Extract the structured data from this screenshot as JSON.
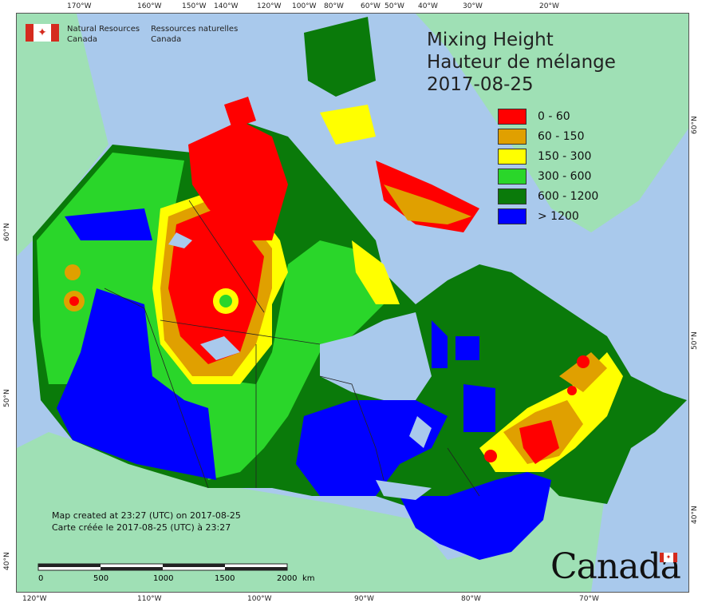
{
  "title": {
    "line1": "Mixing Height",
    "line2": "Hauteur de mélange",
    "date": "2017-08-25"
  },
  "agency": {
    "en_line1": "Natural Resources",
    "en_line2": "Canada",
    "fr_line1": "Ressources naturelles",
    "fr_line2": "Canada"
  },
  "legend": [
    {
      "label": "0 - 60",
      "color": "#ff0000"
    },
    {
      "label": "60 - 150",
      "color": "#e0a000"
    },
    {
      "label": "150 - 300",
      "color": "#ffff00"
    },
    {
      "label": "300 - 600",
      "color": "#2ad62a"
    },
    {
      "label": "600 - 1200",
      "color": "#0a7a0a"
    },
    {
      "label": "> 1200",
      "color": "#0000ff"
    }
  ],
  "footer": {
    "created_en": "Map created at 23:27 (UTC) on 2017-08-25",
    "created_fr": "Carte créée le 2017-08-25 (UTC) à 23:27"
  },
  "scale": {
    "ticks": [
      "0",
      "500",
      "1000",
      "1500",
      "2000"
    ],
    "unit": "km"
  },
  "wordmark": "Canada",
  "graticule": {
    "top": [
      "170°W",
      "160°W",
      "150°W",
      "140°W",
      "120°W",
      "100°W",
      "80°W",
      "60°W",
      "50°W",
      "40°W",
      "30°W",
      "20°W"
    ],
    "bottom": [
      "120°W",
      "110°W",
      "100°W",
      "90°W",
      "80°W",
      "70°W"
    ],
    "left": [
      "60°N",
      "50°N",
      "40°N"
    ],
    "right": [
      "60°N",
      "50°N",
      "40°N"
    ]
  },
  "colors": {
    "ocean": "#a9c9ec",
    "land_other": "#9fe0b5",
    "lakes": "#a9c9ec"
  }
}
